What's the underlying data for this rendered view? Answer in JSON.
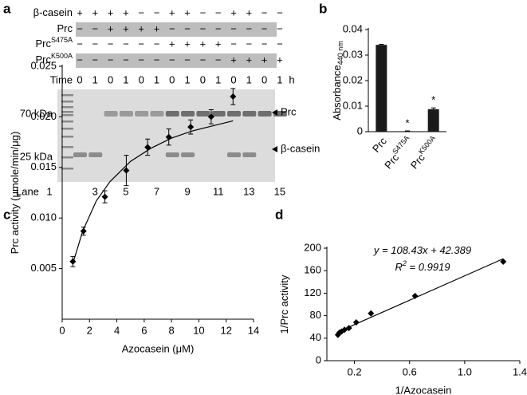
{
  "gel": {
    "panel_label": "a",
    "rows": [
      {
        "label": "β-casein",
        "signs": [
          "+",
          "+",
          "+",
          "+",
          "−",
          "−",
          "+",
          "+",
          "−",
          "−",
          "+",
          "+",
          "−",
          "−"
        ]
      },
      {
        "label": "Prc",
        "shaded": true,
        "signs": [
          "−",
          "−",
          "+",
          "+",
          "+",
          "+",
          "−",
          "−",
          "−",
          "−",
          "−",
          "−",
          "−",
          "−"
        ]
      },
      {
        "label": "Prc",
        "sup": "S475A",
        "signs": [
          "−",
          "−",
          "−",
          "−",
          "−",
          "−",
          "+",
          "+",
          "+",
          "+",
          "−",
          "−",
          "−",
          "−"
        ]
      },
      {
        "label": "Prc",
        "sup": "K500A",
        "shaded": true,
        "signs": [
          "−",
          "−",
          "−",
          "−",
          "−",
          "−",
          "−",
          "−",
          "−",
          "−",
          "+",
          "+",
          "+",
          "+"
        ]
      }
    ],
    "time_label": "Time",
    "times": [
      "0",
      "1",
      "0",
      "1",
      "0",
      "1",
      "0",
      "1",
      "0",
      "1",
      "0",
      "1",
      "0",
      "1"
    ],
    "time_unit": "h",
    "size_markers": [
      "70 kDa",
      "25 kDa"
    ],
    "band_labels": [
      "Prc",
      "β-casein"
    ],
    "lane_label": "Lane",
    "lanes": [
      "1",
      "3",
      "5",
      "7",
      "9",
      "11",
      "13",
      "15"
    ]
  },
  "chart_data": [
    {
      "type": "bar",
      "panel_label": "b",
      "ylabel": "Absorbance",
      "ylabel_sub": "440 nm",
      "categories": [
        {
          "label": "Prc"
        },
        {
          "label": "Prc",
          "sup": "S475A",
          "note": "*"
        },
        {
          "label": "Prc",
          "sup": "K500A",
          "note": "*"
        }
      ],
      "values": [
        0.034,
        0.0002,
        0.0088
      ],
      "errors": [
        0.0002,
        0.0001,
        0.0005
      ],
      "color": "#1a1a1a",
      "ylim": [
        0,
        0.04
      ],
      "yticks": [
        0,
        0.01,
        0.02,
        0.03,
        0.04
      ]
    },
    {
      "type": "scatter",
      "panel_label": "c",
      "xlabel": "Azocasein (μM)",
      "ylabel": "Prc activity (μmole/min/μg)",
      "xlim": [
        0,
        14
      ],
      "xticks": [
        0,
        2,
        4,
        6,
        8,
        10,
        12,
        14
      ],
      "ylim": [
        0,
        0.025
      ],
      "yticks": [
        0.005,
        {
          "value": 0.01,
          "label": "0.010"
        },
        0.015,
        {
          "value": 0.02,
          "label": "0.020"
        },
        0.025
      ],
      "series": [
        {
          "kind": "points",
          "color": "#000000",
          "x": [
            0.78,
            1.56,
            3.125,
            4.69,
            6.25,
            7.8,
            9.4,
            10.9,
            12.5
          ],
          "values": [
            0.0057,
            0.0087,
            0.0121,
            0.0147,
            0.017,
            0.018,
            0.019,
            0.02,
            0.022
          ],
          "errors": [
            0.0005,
            0.0004,
            0.0006,
            0.0015,
            0.0008,
            0.0008,
            0.0007,
            0.0007,
            0.0008
          ]
        },
        {
          "kind": "line",
          "color": "#000000",
          "x": [
            0.78,
            1.5,
            2.5,
            3.5,
            5,
            6.5,
            8,
            9.5,
            11,
            12.5
          ],
          "values": [
            0.0055,
            0.0087,
            0.0117,
            0.0136,
            0.0156,
            0.0169,
            0.0179,
            0.0186,
            0.0191,
            0.0196
          ]
        }
      ]
    },
    {
      "type": "scatter",
      "panel_label": "d",
      "xlabel": "1/Azocasein",
      "ylabel": "1/Prc activity",
      "xlim": [
        0,
        1.4
      ],
      "xticks": [
        0.2,
        0.6,
        {
          "value": 1,
          "label": "1.0"
        },
        1.4
      ],
      "ylim": [
        0,
        200
      ],
      "yticks": [
        0,
        40,
        80,
        120,
        160,
        200
      ],
      "annotations": [
        {
          "text": "y = 108.43x + 42.389"
        },
        {
          "text": "R",
          "sup": "2",
          "rest": " = 0.9919"
        }
      ],
      "series": [
        {
          "kind": "points",
          "color": "#000000",
          "x": [
            1.28,
            0.64,
            0.32,
            0.213,
            0.16,
            0.128,
            0.107,
            0.0914,
            0.08
          ],
          "values": [
            176,
            115,
            84,
            68,
            58,
            55,
            52,
            50,
            46
          ]
        },
        {
          "kind": "line",
          "color": "#000000",
          "x": [
            0.08,
            1.28
          ],
          "values": [
            51.1,
            181.2
          ]
        }
      ]
    }
  ]
}
